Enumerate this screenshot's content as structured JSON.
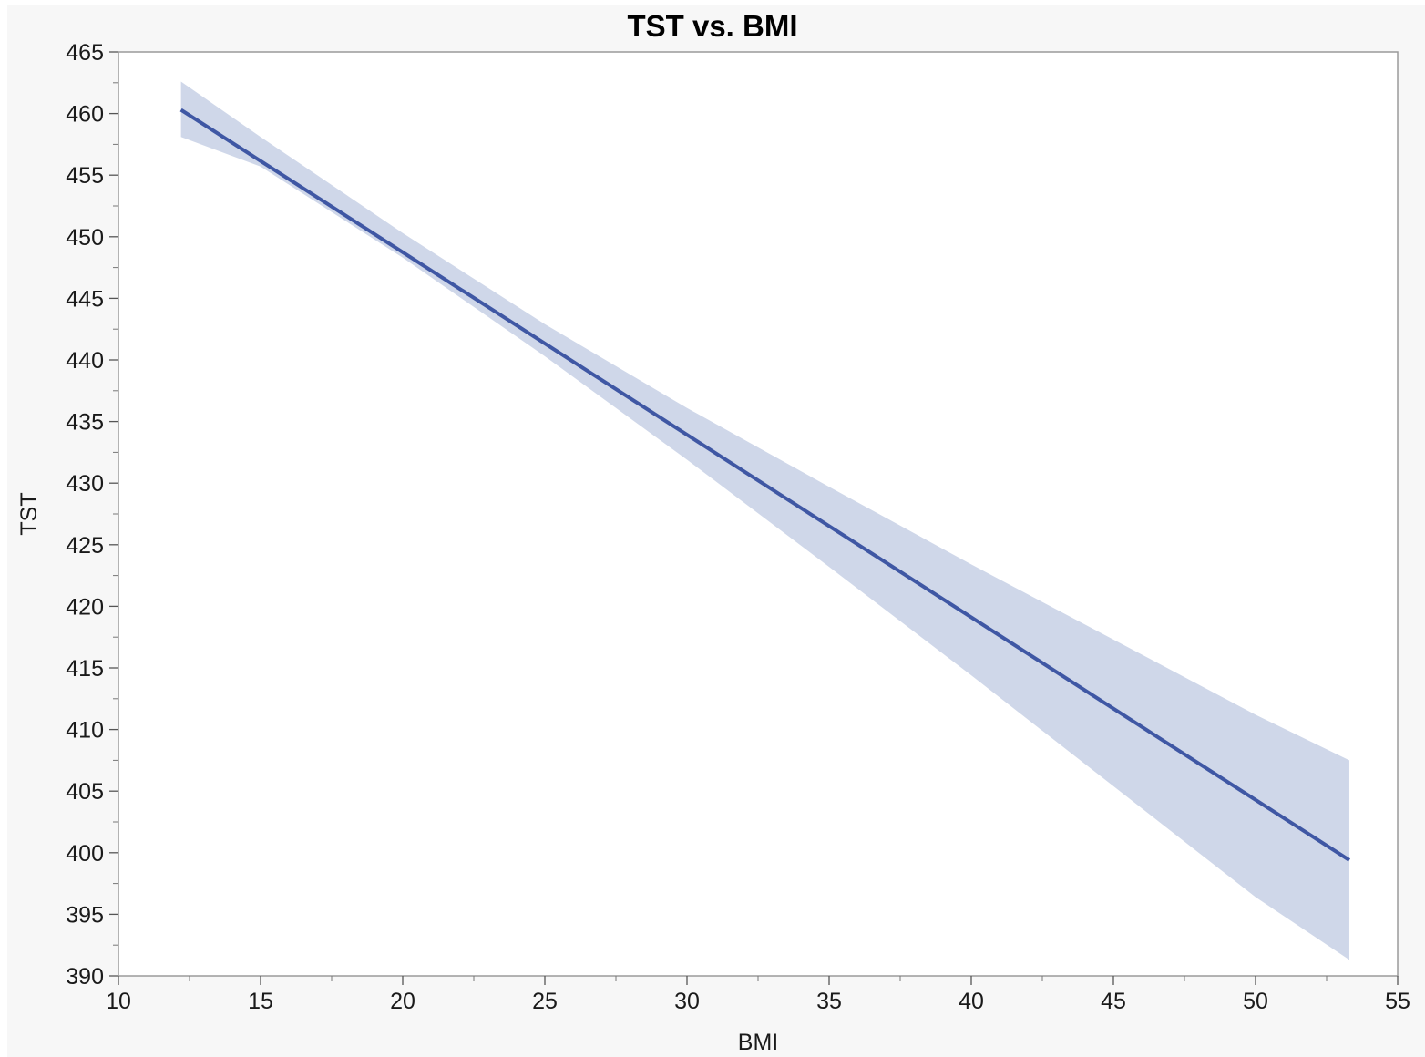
{
  "chart_data": {
    "type": "line",
    "title": "TST vs. BMI",
    "xlabel": "BMI",
    "ylabel": "TST",
    "xlim": [
      10,
      55
    ],
    "ylim": [
      390,
      465
    ],
    "x_ticks": [
      10,
      15,
      20,
      25,
      30,
      35,
      40,
      45,
      50,
      55
    ],
    "y_ticks": [
      390,
      395,
      400,
      405,
      410,
      415,
      420,
      425,
      430,
      435,
      440,
      445,
      450,
      455,
      460,
      465
    ],
    "grid": false,
    "series": [
      {
        "x": [
          12.2,
          53.3
        ],
        "y": [
          460.3,
          399.4
        ],
        "color": "#3f57a4"
      }
    ],
    "confidence_band": {
      "x": [
        12.2,
        15,
        20,
        25,
        30,
        35,
        40,
        45,
        50,
        53.3
      ],
      "lower": [
        458.1,
        455.7,
        448.3,
        440.3,
        431.9,
        423.2,
        414.4,
        405.4,
        396.4,
        391.3
      ],
      "upper": [
        462.6,
        458.1,
        450.3,
        442.9,
        436.1,
        429.7,
        423.4,
        417.3,
        411.2,
        407.5
      ],
      "color": "#cfd7e9"
    }
  }
}
